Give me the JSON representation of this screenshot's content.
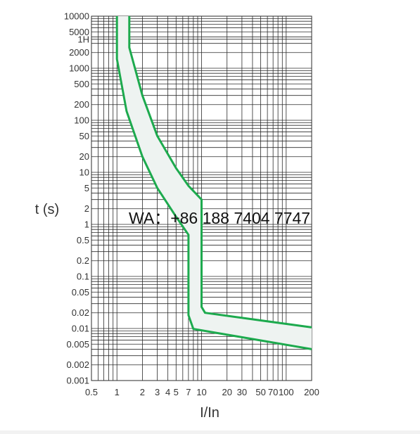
{
  "chart_data": {
    "type": "area",
    "xlabel": "I/In",
    "ylabel": "t (s)",
    "x_scale": "log",
    "y_scale": "log",
    "xlim": [
      0.5,
      200
    ],
    "ylim": [
      0.001,
      10000
    ],
    "x_ticks": [
      {
        "v": 0.5,
        "label": "0.5"
      },
      {
        "v": 1,
        "label": "1"
      },
      {
        "v": 2,
        "label": "2"
      },
      {
        "v": 3,
        "label": "3"
      },
      {
        "v": 4,
        "label": "4"
      },
      {
        "v": 5,
        "label": "5"
      },
      {
        "v": 7,
        "label": "7"
      },
      {
        "v": 10,
        "label": "10"
      },
      {
        "v": 20,
        "label": "20"
      },
      {
        "v": 30,
        "label": "30"
      },
      {
        "v": 50,
        "label": "50"
      },
      {
        "v": 70,
        "label": "70"
      },
      {
        "v": 100,
        "label": "100"
      },
      {
        "v": 200,
        "label": "200"
      }
    ],
    "y_ticks": [
      {
        "v": 10000,
        "label": "10000"
      },
      {
        "v": 5000,
        "label": "5000"
      },
      {
        "v": 3600,
        "label": "1H"
      },
      {
        "v": 2000,
        "label": "2000"
      },
      {
        "v": 1000,
        "label": "1000"
      },
      {
        "v": 500,
        "label": "500"
      },
      {
        "v": 200,
        "label": "200"
      },
      {
        "v": 100,
        "label": "100"
      },
      {
        "v": 50,
        "label": "50"
      },
      {
        "v": 20,
        "label": "20"
      },
      {
        "v": 10,
        "label": "10"
      },
      {
        "v": 5,
        "label": "5"
      },
      {
        "v": 2,
        "label": "2"
      },
      {
        "v": 1,
        "label": "1"
      },
      {
        "v": 0.5,
        "label": "0.5"
      },
      {
        "v": 0.2,
        "label": "0.2"
      },
      {
        "v": 0.1,
        "label": "0.1"
      },
      {
        "v": 0.05,
        "label": "0.05"
      },
      {
        "v": 0.02,
        "label": "0.02"
      },
      {
        "v": 0.01,
        "label": "0.01"
      },
      {
        "v": 0.005,
        "label": "0.005"
      },
      {
        "v": 0.002,
        "label": "0.002"
      },
      {
        "v": 0.001,
        "label": "0.001"
      }
    ],
    "grid": true,
    "series": [
      {
        "points": [
          [
            1.0,
            10000
          ],
          [
            1.0,
            1500
          ],
          [
            1.3,
            150
          ],
          [
            2.0,
            20
          ],
          [
            3.0,
            5
          ],
          [
            5.0,
            1.4
          ],
          [
            7.0,
            0.63
          ],
          [
            7.0,
            0.018
          ],
          [
            8.0,
            0.0098
          ],
          [
            200,
            0.004
          ]
        ]
      },
      {
        "points": [
          [
            1.4,
            10000
          ],
          [
            1.4,
            2500
          ],
          [
            2.0,
            300
          ],
          [
            3.0,
            50
          ],
          [
            5.0,
            12
          ],
          [
            7.0,
            5.5
          ],
          [
            10.0,
            3.0
          ],
          [
            10.0,
            0.026
          ],
          [
            11.0,
            0.02
          ],
          [
            200,
            0.0105
          ]
        ]
      }
    ],
    "curve_color": "#1daa4e",
    "band_fill": "#eef3f1"
  },
  "watermark": "WA：+86 188 7404 7747"
}
